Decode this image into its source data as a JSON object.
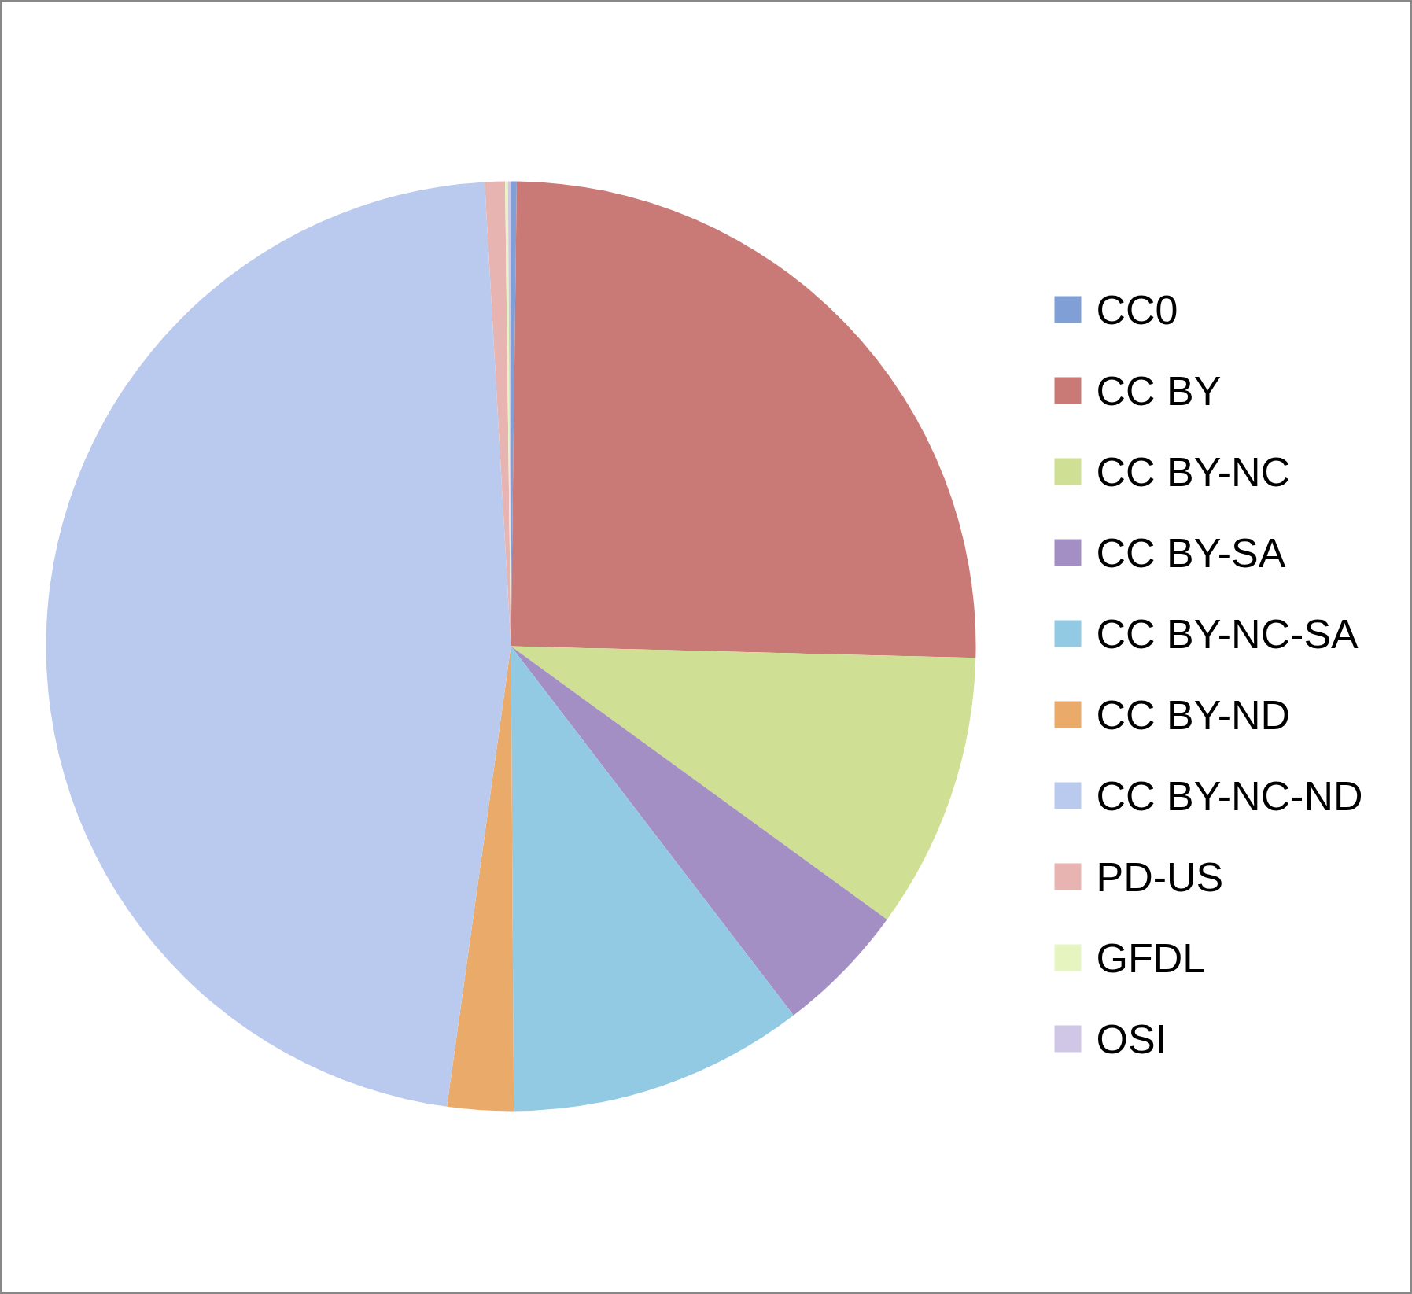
{
  "chart_data": {
    "type": "pie",
    "categories": [
      "CC0",
      "CC BY",
      "CC BY-NC",
      "CC BY-SA",
      "CC BY-NC-SA",
      "CC BY-ND",
      "CC BY-NC-ND",
      "PD-US",
      "GFDL",
      "OSI"
    ],
    "values": [
      0.2,
      25.2,
      9.6,
      4.6,
      10.3,
      2.3,
      46.9,
      0.7,
      0.1,
      0.1
    ],
    "colors": [
      "#7f9fd6",
      "#c97a76",
      "#cfe094",
      "#a48fc4",
      "#92c9e3",
      "#eaaa6a",
      "#b9caee",
      "#e8b4b2",
      "#e6f5bf",
      "#d0c6e6"
    ],
    "legend": "right"
  }
}
